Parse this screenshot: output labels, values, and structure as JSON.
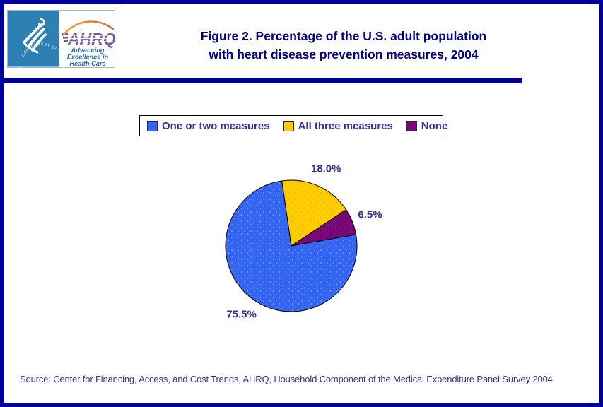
{
  "header": {
    "logo": {
      "hhs_circle_text": "DEPARTMENT OF HEALTH & HUMAN SERVICES • USA",
      "ahrq_acronym": "AHRQ",
      "tagline": {
        "line1": "Advancing",
        "line2": "Excellence in",
        "line3": "Health Care"
      }
    },
    "title_line1": "Figure 2. Percentage of the U.S. adult population",
    "title_line2": "with heart disease prevention measures, 2004"
  },
  "chart_data": {
    "type": "pie",
    "title": "Figure 2. Percentage of the U.S. adult population with heart disease prevention measures, 2004",
    "categories": [
      "One or two measures",
      "All three measures",
      "None"
    ],
    "values": [
      75.5,
      18.0,
      6.5
    ],
    "data_labels": [
      "75.5%",
      "18.0%",
      "6.5%"
    ],
    "colors": [
      "#3365F2",
      "#FFCC00",
      "#7A087A"
    ],
    "dot_colors": [
      "#7DA0F7",
      "#E4AE00",
      "#5E055E"
    ],
    "legend_position": "top",
    "start_angle_deg": 80,
    "direction": "clockwise",
    "outline_color": "#000000"
  },
  "footer": {
    "source": "Source: Center for Financing, Access, and Cost Trends, AHRQ, Household Component of the Medical Expenditure Panel Survey 2004"
  },
  "colors": {
    "frame_border": "#000099",
    "divider_bar": "#000099",
    "title_text": "#000080",
    "label_text": "#333399",
    "hhs_blue": "#2E7FB2",
    "ahrq_purple": "#7B55A5",
    "ahrq_tagline_blue": "#2766A9",
    "swoosh_orange": "#F0A636",
    "swoosh_red": "#D2622E"
  }
}
